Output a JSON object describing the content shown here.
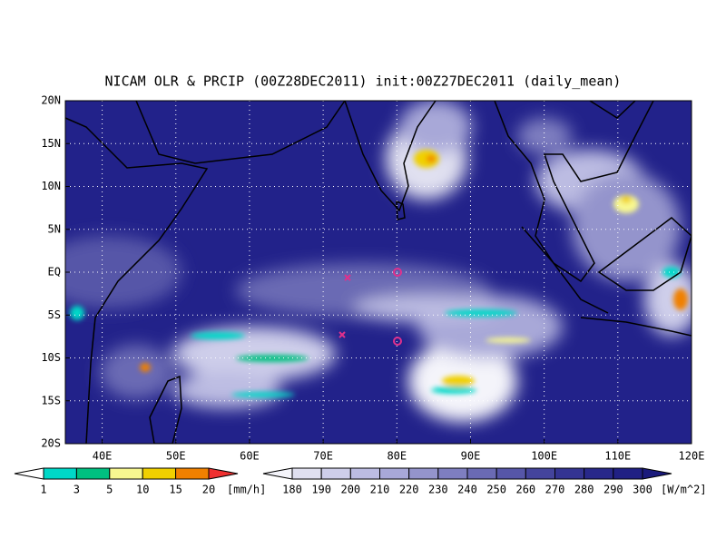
{
  "title": "NICAM OLR & PRCIP (00Z28DEC2011) init:00Z27DEC2011 (daily_mean)",
  "map": {
    "lon_range": [
      35,
      120
    ],
    "lat_range": [
      -20,
      20
    ],
    "lon_ticks": [
      {
        "value": 40,
        "label": "40E"
      },
      {
        "value": 50,
        "label": "50E"
      },
      {
        "value": 60,
        "label": "60E"
      },
      {
        "value": 70,
        "label": "70E"
      },
      {
        "value": 80,
        "label": "80E"
      },
      {
        "value": 90,
        "label": "90E"
      },
      {
        "value": 100,
        "label": "100E"
      },
      {
        "value": 110,
        "label": "110E"
      },
      {
        "value": 120,
        "label": "120E"
      }
    ],
    "lat_ticks": [
      {
        "value": 20,
        "label": "20N"
      },
      {
        "value": 15,
        "label": "15N"
      },
      {
        "value": 10,
        "label": "10N"
      },
      {
        "value": 5,
        "label": "5N"
      },
      {
        "value": 0,
        "label": "EQ"
      },
      {
        "value": -5,
        "label": "5S"
      },
      {
        "value": -10,
        "label": "10S"
      },
      {
        "value": -15,
        "label": "15S"
      },
      {
        "value": -20,
        "label": "20S"
      }
    ]
  },
  "precip_colorbar": {
    "ticks": [
      1,
      3,
      5,
      10,
      15,
      20
    ],
    "colors": [
      "#ffffff",
      "#00d8c8",
      "#00c080",
      "#f8f890",
      "#f0d000",
      "#f08000",
      "#f03030"
    ],
    "unit": "[mm/h]"
  },
  "olr_colorbar": {
    "ticks": [
      180,
      190,
      200,
      210,
      220,
      230,
      240,
      250,
      260,
      270,
      280,
      290,
      300
    ],
    "colors": [
      "#f4f4fa",
      "#e0e0f0",
      "#ceceea",
      "#bcbce2",
      "#a8a8d8",
      "#9494cc",
      "#7e7ec0",
      "#6a6ab4",
      "#5656a8",
      "#44449c",
      "#343492",
      "#28288a",
      "#202084",
      "#1a1a7c"
    ],
    "unit": "[W/m^2]"
  }
}
